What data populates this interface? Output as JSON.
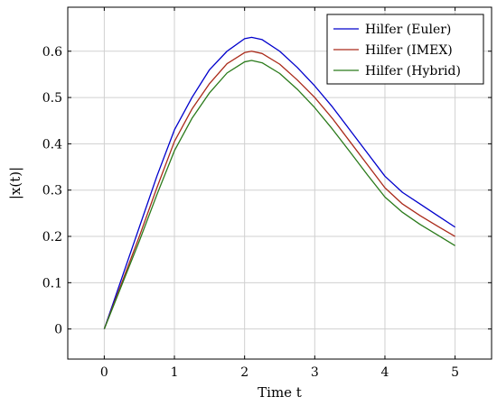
{
  "chart_data": {
    "type": "line",
    "xlabel": "Time t",
    "ylabel": "|x(t)|",
    "xlim": [
      -0.52,
      5.52
    ],
    "ylim": [
      -0.065,
      0.695
    ],
    "xticks": [
      0,
      1,
      2,
      3,
      4,
      5
    ],
    "yticks": [
      0,
      0.1,
      0.2,
      0.3,
      0.4,
      0.5,
      0.6
    ],
    "grid": true,
    "legend_position": "top-right",
    "series": [
      {
        "name": "Hilfer (Euler)",
        "color": "#0000cc",
        "x": [
          0,
          0.25,
          0.5,
          0.75,
          1,
          1.25,
          1.5,
          1.75,
          2,
          2.1,
          2.25,
          2.5,
          2.75,
          3,
          3.25,
          3.5,
          3.75,
          4,
          4.25,
          4.5,
          4.75,
          5
        ],
        "y": [
          0,
          0.11,
          0.22,
          0.33,
          0.43,
          0.5,
          0.56,
          0.6,
          0.627,
          0.63,
          0.625,
          0.6,
          0.565,
          0.525,
          0.48,
          0.43,
          0.38,
          0.33,
          0.295,
          0.27,
          0.245,
          0.22
        ]
      },
      {
        "name": "Hilfer (IMEX)",
        "color": "#aa2a1a",
        "x": [
          0,
          0.25,
          0.5,
          0.75,
          1,
          1.25,
          1.5,
          1.75,
          2,
          2.1,
          2.25,
          2.5,
          2.75,
          3,
          3.25,
          3.5,
          3.75,
          4,
          4.25,
          4.5,
          4.75,
          5
        ],
        "y": [
          0,
          0.1,
          0.2,
          0.305,
          0.405,
          0.475,
          0.53,
          0.573,
          0.597,
          0.6,
          0.595,
          0.572,
          0.538,
          0.5,
          0.455,
          0.405,
          0.355,
          0.305,
          0.27,
          0.245,
          0.222,
          0.2
        ]
      },
      {
        "name": "Hilfer (Hybrid)",
        "color": "#2a7a1a",
        "x": [
          0,
          0.25,
          0.5,
          0.75,
          1,
          1.25,
          1.5,
          1.75,
          2,
          2.1,
          2.25,
          2.5,
          2.75,
          3,
          3.25,
          3.5,
          3.75,
          4,
          4.25,
          4.5,
          4.75,
          5
        ],
        "y": [
          0,
          0.095,
          0.19,
          0.29,
          0.385,
          0.455,
          0.51,
          0.553,
          0.577,
          0.58,
          0.575,
          0.552,
          0.518,
          0.478,
          0.432,
          0.383,
          0.333,
          0.285,
          0.252,
          0.226,
          0.203,
          0.18
        ]
      }
    ]
  }
}
